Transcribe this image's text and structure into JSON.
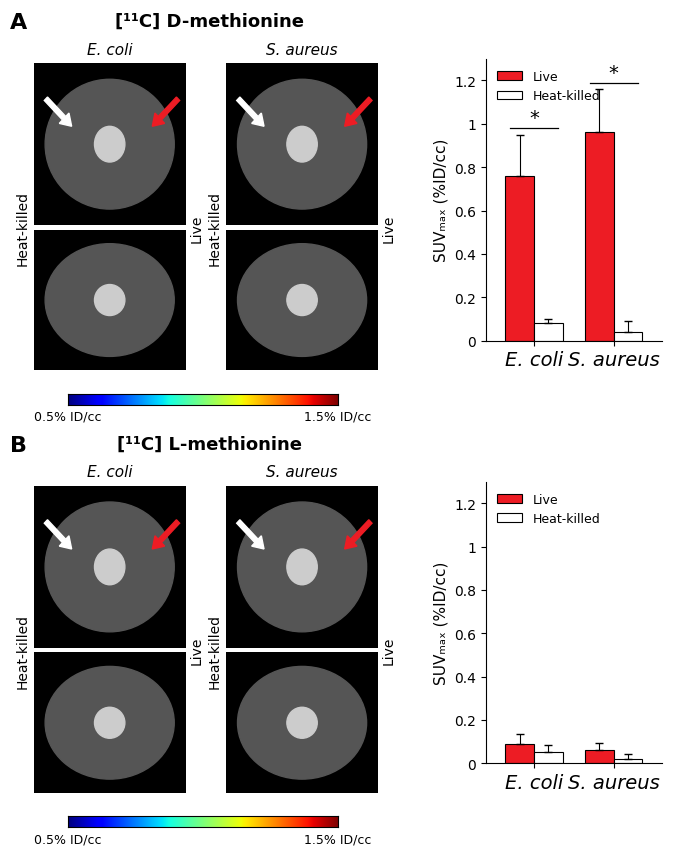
{
  "panels": [
    {
      "label": "A",
      "title": "[¹¹C] D-methionine",
      "image_columns": [
        "E. coli",
        "S. aureus"
      ],
      "image_side_labels": [
        "Heat-killed",
        "Live"
      ],
      "colorbar": {
        "range": [
          0.5,
          1.5
        ],
        "ticks": [
          {
            "value": 0.5,
            "label": "0.5% ID/cc"
          },
          {
            "value": 1.5,
            "label": "1.5% ID/cc"
          }
        ]
      }
    },
    {
      "label": "B",
      "title": "[¹¹C] L-methionine",
      "image_columns": [
        "E. coli",
        "S. aureus"
      ],
      "image_side_labels": [
        "Heat-killed",
        "Live"
      ],
      "colorbar": {
        "range": [
          0.5,
          1.5
        ],
        "ticks": [
          {
            "value": 0.5,
            "label": "0.5% ID/cc"
          },
          {
            "value": 1.5,
            "label": "1.5% ID/cc"
          }
        ]
      }
    }
  ],
  "chart_data": [
    {
      "type": "bar",
      "categories": [
        "E. coli",
        "S. aureus"
      ],
      "series": [
        {
          "name": "Live",
          "color": "#ed1c24",
          "values": [
            0.76,
            0.96
          ],
          "errors": [
            0.19,
            0.2
          ]
        },
        {
          "name": "Heat-killed",
          "color": "#ffffff",
          "values": [
            0.08,
            0.04
          ],
          "errors": [
            0.02,
            0.05
          ]
        }
      ],
      "y_label": "SUVₘₐₓ (%ID/cc)",
      "ylim": [
        0,
        1.3
      ],
      "yticks": [
        0,
        0.2,
        0.4,
        0.6,
        0.8,
        1,
        1.2
      ],
      "legend": "upper left",
      "annotations": [
        {
          "text": "*",
          "category": "E. coli"
        },
        {
          "text": "*",
          "category": "S. aureus"
        }
      ]
    },
    {
      "type": "bar",
      "categories": [
        "E. coli",
        "S. aureus"
      ],
      "series": [
        {
          "name": "Live",
          "color": "#ed1c24",
          "values": [
            0.09,
            0.06
          ],
          "errors": [
            0.045,
            0.035
          ]
        },
        {
          "name": "Heat-killed",
          "color": "#ffffff",
          "values": [
            0.05,
            0.02
          ],
          "errors": [
            0.035,
            0.025
          ]
        }
      ],
      "y_label": "SUVₘₐₓ (%ID/cc)",
      "ylim": [
        0,
        1.3
      ],
      "yticks": [
        0,
        0.2,
        0.4,
        0.6,
        0.8,
        1,
        1.2
      ],
      "legend": "upper left"
    }
  ]
}
